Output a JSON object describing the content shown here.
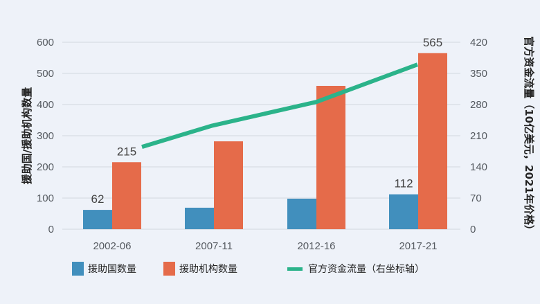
{
  "chart_data": {
    "type": "bar",
    "title": "",
    "categories": [
      "2002-06",
      "2007-11",
      "2012-16",
      "2017-21"
    ],
    "series": [
      {
        "name": "援助国数量",
        "type": "bar",
        "axis": "left",
        "color": "#418fbd",
        "values": [
          62,
          69,
          98,
          112
        ]
      },
      {
        "name": "援助机构数量",
        "type": "bar",
        "axis": "left",
        "color": "#e56b4a",
        "values": [
          215,
          282,
          460,
          565
        ]
      },
      {
        "name": "官方资金流量（右坐标轴）",
        "type": "line",
        "axis": "right",
        "color": "#2bb38a",
        "values": [
          185,
          232,
          286,
          370
        ]
      }
    ],
    "data_labels": [
      {
        "series": 0,
        "index": 0,
        "text": "62"
      },
      {
        "series": 1,
        "index": 0,
        "text": "215"
      },
      {
        "series": 0,
        "index": 3,
        "text": "112"
      },
      {
        "series": 1,
        "index": 3,
        "text": "565"
      }
    ],
    "ylabel": "援助国/援助机构数量",
    "ylabel_right": "官方资金流量（10亿美元，2021年价格）",
    "ylim": [
      0,
      600
    ],
    "ylim_right": [
      0,
      420
    ],
    "yticks": [
      "0",
      "100",
      "200",
      "300",
      "400",
      "500",
      "600"
    ],
    "yticks_right": [
      "0",
      "70",
      "140",
      "210",
      "280",
      "350",
      "420"
    ],
    "grid": true,
    "legend_position": "bottom"
  },
  "legend": {
    "item1": "援助国数量",
    "item2": "援助机构数量",
    "item3": "官方资金流量（右坐标轴）"
  }
}
